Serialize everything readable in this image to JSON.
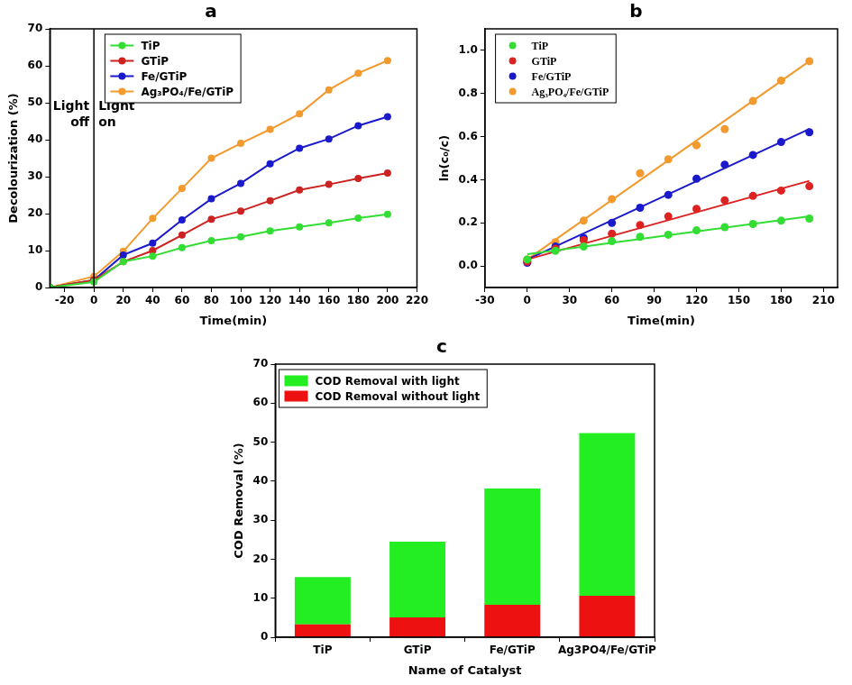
{
  "chart_data": [
    {
      "type": "line",
      "title": "a",
      "x_label": "Time(min)",
      "y_label": "Decolourization (%)",
      "x": [
        -30,
        0,
        20,
        40,
        60,
        80,
        100,
        120,
        140,
        160,
        180,
        200
      ],
      "series": [
        {
          "name": "TiP",
          "color": "#33dd33",
          "marker": "circle",
          "values": [
            0,
            1.5,
            7,
            8.5,
            10.8,
            12.7,
            13.7,
            15.3,
            16.4,
            17.5,
            18.8,
            19.8
          ]
        },
        {
          "name": "GTiP",
          "color": "#cc2222",
          "marker": "circle",
          "values": [
            0,
            2,
            7,
            10,
            14.2,
            18.5,
            20.7,
            23.5,
            26.4,
            27.9,
            29.5,
            31
          ]
        },
        {
          "name": "Fe/GTiP",
          "color": "#1a1acc",
          "marker": "circle",
          "values": [
            0,
            2,
            8.8,
            12,
            18.3,
            24,
            28.2,
            33.5,
            37.7,
            40.2,
            43.8,
            46.2
          ]
        },
        {
          "name": "Ag₃PO₄/Fe/GTiP",
          "color": "#f29a2e",
          "marker": "circle",
          "values": [
            0,
            3,
            9.8,
            18.7,
            26.8,
            35,
            39,
            42.8,
            47,
            53.5,
            58,
            61.4
          ]
        }
      ],
      "xlim": [
        -30,
        220
      ],
      "xticks": [
        -20,
        0,
        20,
        40,
        60,
        80,
        100,
        120,
        140,
        160,
        180,
        200,
        220
      ],
      "ylim": [
        0,
        70
      ],
      "yticks": [
        0,
        10,
        20,
        30,
        40,
        50,
        60,
        70
      ],
      "grid": false,
      "legend": "top-left",
      "annotations": [
        {
          "type": "vline",
          "x": 0,
          "left_text": "Light off",
          "right_text": "Light on"
        }
      ]
    },
    {
      "type": "scatter",
      "title": "b",
      "x_label": "Time(min)",
      "y_label": "ln(c₀/c)",
      "x": [
        0,
        20,
        40,
        60,
        80,
        100,
        120,
        140,
        160,
        180,
        200
      ],
      "series": [
        {
          "name": "TiP",
          "color": "#33dd33",
          "marker": "circle",
          "line_style": "solid",
          "values": [
            0.03,
            0.07,
            0.09,
            0.115,
            0.135,
            0.145,
            0.165,
            0.18,
            0.195,
            0.21,
            0.22
          ],
          "fit_x": [
            0,
            200
          ],
          "fit_values": [
            0.055,
            0.23
          ]
        },
        {
          "name": "GTiP",
          "color": "#dd2222",
          "marker": "circle",
          "line_style": "solid",
          "values": [
            0.02,
            0.08,
            0.12,
            0.15,
            0.19,
            0.23,
            0.265,
            0.305,
            0.325,
            0.35,
            0.37
          ],
          "fit_x": [
            0,
            200
          ],
          "fit_values": [
            0.03,
            0.395
          ]
        },
        {
          "name": "Fe/GTiP",
          "color": "#1a1acc",
          "marker": "circle",
          "line_style": "solid",
          "values": [
            0.015,
            0.09,
            0.13,
            0.2,
            0.27,
            0.33,
            0.405,
            0.47,
            0.515,
            0.575,
            0.62
          ],
          "fit_x": [
            0,
            200
          ],
          "fit_values": [
            0.03,
            0.635
          ]
        },
        {
          "name": "Ag₃PO₄/Fe/GTiP",
          "color": "#f29a2e",
          "marker": "circle",
          "line_style": "solid",
          "values": [
            0.03,
            0.11,
            0.21,
            0.31,
            0.43,
            0.495,
            0.56,
            0.635,
            0.765,
            0.86,
            0.95
          ],
          "fit_x": [
            0,
            200
          ],
          "fit_values": [
            0.03,
            0.95
          ]
        }
      ],
      "xlim": [
        -30,
        220
      ],
      "xticks": [
        -30,
        0,
        30,
        60,
        90,
        120,
        150,
        180,
        210
      ],
      "ylim": [
        -0.1,
        1.1
      ],
      "yticks": [
        {
          "value": 0,
          "label": "0.0"
        },
        0.2,
        0.4,
        0.6,
        0.8,
        {
          "value": 1,
          "label": "1.0"
        }
      ],
      "grid": false,
      "legend": "top-left"
    },
    {
      "type": "bar",
      "title": "c",
      "x_label": "Name of Catalyst",
      "y_label": "COD Removal (%)",
      "categories": [
        "TiP",
        "GTiP",
        "Fe/GTiP",
        "Ag3PO4/Fe/GTiP"
      ],
      "series": [
        {
          "name": "COD Removal with light",
          "color": "#22ee22",
          "values": [
            12.1,
            19.4,
            29.8,
            41.7
          ]
        },
        {
          "name": "COD Removal without light",
          "color": "#ee1111",
          "values": [
            3.3,
            5.1,
            8.3,
            10.6
          ]
        }
      ],
      "stacked": true,
      "ylim": [
        0,
        70
      ],
      "yticks": [
        0,
        10,
        20,
        30,
        40,
        50,
        60,
        70
      ],
      "grid": false,
      "legend": "top-left"
    }
  ]
}
